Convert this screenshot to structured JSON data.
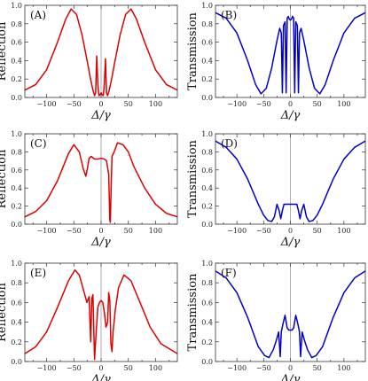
{
  "chart_data": [
    {
      "panel": "(A)",
      "type": "line",
      "ylabel": "Reflection",
      "xlabel": "Δ/γ",
      "color": "#dd0000",
      "xlim": [
        -140,
        140
      ],
      "ylim": [
        0,
        1.0
      ],
      "xticks": [
        "-100",
        "-50",
        "0",
        "50",
        "100"
      ],
      "yticks": [
        "0.0",
        "0.2",
        "0.4",
        "0.6",
        "0.8",
        "1.0"
      ],
      "x": [
        -140,
        -120,
        -100,
        -80,
        -65,
        -55,
        -45,
        -35,
        -25,
        -20,
        -15,
        -12,
        -10,
        -8,
        -6,
        -4,
        -2,
        0,
        2,
        4,
        6,
        8,
        10,
        12,
        15,
        20,
        25,
        35,
        45,
        55,
        65,
        80,
        100,
        120,
        140
      ],
      "y": [
        0.08,
        0.14,
        0.3,
        0.6,
        0.85,
        0.96,
        0.9,
        0.68,
        0.38,
        0.22,
        0.08,
        0.02,
        0.05,
        0.45,
        0.15,
        0.02,
        0.03,
        0.05,
        0.03,
        0.02,
        0.15,
        0.42,
        0.05,
        0.02,
        0.08,
        0.22,
        0.38,
        0.68,
        0.9,
        0.96,
        0.85,
        0.6,
        0.3,
        0.14,
        0.08
      ]
    },
    {
      "panel": "(B)",
      "type": "line",
      "ylabel": "Transmission",
      "xlabel": "Δ/γ",
      "color": "#0000cc",
      "xlim": [
        -140,
        140
      ],
      "ylim": [
        0,
        1.0
      ],
      "xticks": [
        "-100",
        "-50",
        "0",
        "50",
        "100"
      ],
      "yticks": [
        "0.0",
        "0.2",
        "0.4",
        "0.6",
        "0.8",
        "1.0"
      ],
      "x": [
        -140,
        -120,
        -100,
        -80,
        -65,
        -55,
        -45,
        -35,
        -25,
        -20,
        -17,
        -15,
        -13,
        -10,
        -8,
        -6,
        -4,
        -2,
        0,
        2,
        4,
        6,
        8,
        10,
        13,
        15,
        17,
        20,
        25,
        35,
        45,
        55,
        65,
        80,
        100,
        120,
        140
      ],
      "y": [
        0.92,
        0.86,
        0.7,
        0.4,
        0.14,
        0.04,
        0.1,
        0.32,
        0.62,
        0.75,
        0.7,
        0.05,
        0.78,
        0.82,
        0.05,
        0.86,
        0.88,
        0.85,
        0.84,
        0.85,
        0.88,
        0.86,
        0.05,
        0.82,
        0.78,
        0.05,
        0.7,
        0.75,
        0.62,
        0.32,
        0.1,
        0.04,
        0.14,
        0.4,
        0.7,
        0.86,
        0.92
      ]
    },
    {
      "panel": "(C)",
      "type": "line",
      "ylabel": "Reflection",
      "xlabel": "Δ/γ",
      "color": "#dd0000",
      "xlim": [
        -140,
        140
      ],
      "ylim": [
        0,
        1.0
      ],
      "xticks": [
        "-100",
        "-50",
        "0",
        "50",
        "100"
      ],
      "yticks": [
        "0.0",
        "0.2",
        "0.4",
        "0.6",
        "0.8",
        "1.0"
      ],
      "x": [
        -140,
        -120,
        -100,
        -80,
        -60,
        -50,
        -40,
        -33,
        -28,
        -25,
        -22,
        -18,
        -12,
        -6,
        0,
        6,
        10,
        14,
        16,
        17,
        18,
        20,
        24,
        30,
        40,
        50,
        60,
        80,
        100,
        120,
        140
      ],
      "y": [
        0.08,
        0.14,
        0.26,
        0.48,
        0.78,
        0.88,
        0.8,
        0.62,
        0.53,
        0.62,
        0.73,
        0.75,
        0.72,
        0.72,
        0.73,
        0.72,
        0.7,
        0.55,
        0.05,
        0.02,
        0.3,
        0.75,
        0.8,
        0.9,
        0.88,
        0.8,
        0.64,
        0.4,
        0.22,
        0.12,
        0.08
      ]
    },
    {
      "panel": "(D)",
      "type": "line",
      "ylabel": "Transmission",
      "xlabel": "Δ/γ",
      "color": "#0000cc",
      "xlim": [
        -140,
        140
      ],
      "ylim": [
        0,
        1.0
      ],
      "xticks": [
        "-100",
        "-50",
        "0",
        "50",
        "100"
      ],
      "yticks": [
        "0.0",
        "0.2",
        "0.4",
        "0.6",
        "0.8",
        "1.0"
      ],
      "x": [
        -140,
        -120,
        -100,
        -80,
        -60,
        -50,
        -42,
        -35,
        -30,
        -25,
        -21,
        -18,
        -15,
        -12,
        -9,
        0,
        9,
        12,
        15,
        18,
        21,
        25,
        30,
        35,
        42,
        50,
        60,
        80,
        100,
        120,
        140
      ],
      "y": [
        0.92,
        0.85,
        0.72,
        0.5,
        0.22,
        0.1,
        0.04,
        0.03,
        0.08,
        0.22,
        0.15,
        0.06,
        0.15,
        0.22,
        0.22,
        0.22,
        0.22,
        0.22,
        0.15,
        0.06,
        0.15,
        0.22,
        0.08,
        0.03,
        0.04,
        0.1,
        0.22,
        0.5,
        0.72,
        0.85,
        0.92
      ]
    },
    {
      "panel": "(E)",
      "type": "line",
      "ylabel": "Reflection",
      "xlabel": "Δ/γ",
      "color": "#dd0000",
      "xlim": [
        -140,
        140
      ],
      "ylim": [
        0,
        1.0
      ],
      "xticks": [
        "-100",
        "-50",
        "0",
        "50",
        "100"
      ],
      "yticks": [
        "0.0",
        "0.2",
        "0.4",
        "0.6",
        "0.8",
        "1.0"
      ],
      "x": [
        -140,
        -120,
        -100,
        -80,
        -60,
        -48,
        -40,
        -32,
        -26,
        -22,
        -19,
        -17,
        -15,
        -12,
        -9,
        -6,
        -3,
        0,
        3,
        6,
        9,
        12,
        14,
        16,
        18,
        20,
        22,
        26,
        32,
        42,
        55,
        70,
        90,
        110,
        140
      ],
      "y": [
        0.08,
        0.15,
        0.3,
        0.55,
        0.82,
        0.93,
        0.88,
        0.72,
        0.6,
        0.66,
        0.2,
        0.64,
        0.68,
        0.02,
        0.3,
        0.55,
        0.6,
        0.62,
        0.6,
        0.5,
        0.35,
        0.4,
        0.7,
        0.62,
        0.18,
        0.1,
        0.3,
        0.52,
        0.75,
        0.88,
        0.82,
        0.62,
        0.35,
        0.18,
        0.08
      ]
    },
    {
      "panel": "(F)",
      "type": "line",
      "ylabel": "Transmission",
      "xlabel": "Δ/γ",
      "color": "#0000cc",
      "xlim": [
        -140,
        140
      ],
      "ylim": [
        0,
        1.0
      ],
      "xticks": [
        "-100",
        "-50",
        "0",
        "50",
        "100"
      ],
      "yticks": [
        "0.0",
        "0.2",
        "0.4",
        "0.6",
        "0.8",
        "1.0"
      ],
      "x": [
        -140,
        -120,
        -100,
        -80,
        -60,
        -48,
        -40,
        -32,
        -26,
        -22,
        -19,
        -17,
        -14,
        -10,
        -6,
        -3,
        0,
        3,
        6,
        10,
        14,
        17,
        19,
        22,
        26,
        32,
        40,
        48,
        60,
        80,
        100,
        120,
        140
      ],
      "y": [
        0.92,
        0.85,
        0.7,
        0.45,
        0.15,
        0.06,
        0.04,
        0.12,
        0.22,
        0.3,
        0.05,
        0.3,
        0.38,
        0.47,
        0.34,
        0.32,
        0.32,
        0.32,
        0.34,
        0.47,
        0.38,
        0.3,
        0.05,
        0.3,
        0.22,
        0.12,
        0.04,
        0.06,
        0.15,
        0.45,
        0.7,
        0.85,
        0.92
      ]
    }
  ]
}
